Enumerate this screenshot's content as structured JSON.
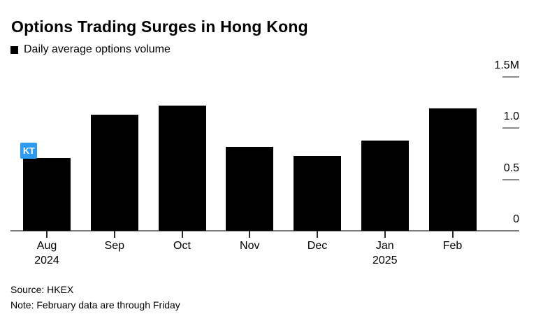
{
  "header": {
    "title": "Options Trading Surges in Hong Kong"
  },
  "legend": {
    "label": "Daily average options volume",
    "swatch_color": "#000000"
  },
  "chart_data": {
    "type": "bar",
    "title": "Options Trading Surges in Hong Kong",
    "series_label": "Daily average options volume",
    "categories": [
      "Aug",
      "Sep",
      "Oct",
      "Nov",
      "Dec",
      "Jan",
      "Feb"
    ],
    "category_years": [
      "2024",
      "",
      "",
      "",
      "",
      "2025",
      ""
    ],
    "values": [
      0.71,
      1.13,
      1.22,
      0.82,
      0.73,
      0.88,
      1.19
    ],
    "unit": "M",
    "xlabel": "",
    "ylabel": "",
    "ylim": [
      0,
      1.5
    ],
    "yticks": [
      {
        "label": "1.5M",
        "value": 1.5
      },
      {
        "label": "1.0",
        "value": 1.0
      },
      {
        "label": "0.5",
        "value": 0.5
      },
      {
        "label": "0",
        "value": 0
      }
    ],
    "legend_position": "top-left",
    "grid": "right-tick-dashes",
    "bar_color": "#000000",
    "axis_color": "#7a7a7a"
  },
  "footer": {
    "source": "Source: HKEX",
    "note": "Note: February data are through Friday"
  },
  "annotation": {
    "label": "KT",
    "color": "#2e9bf0"
  }
}
